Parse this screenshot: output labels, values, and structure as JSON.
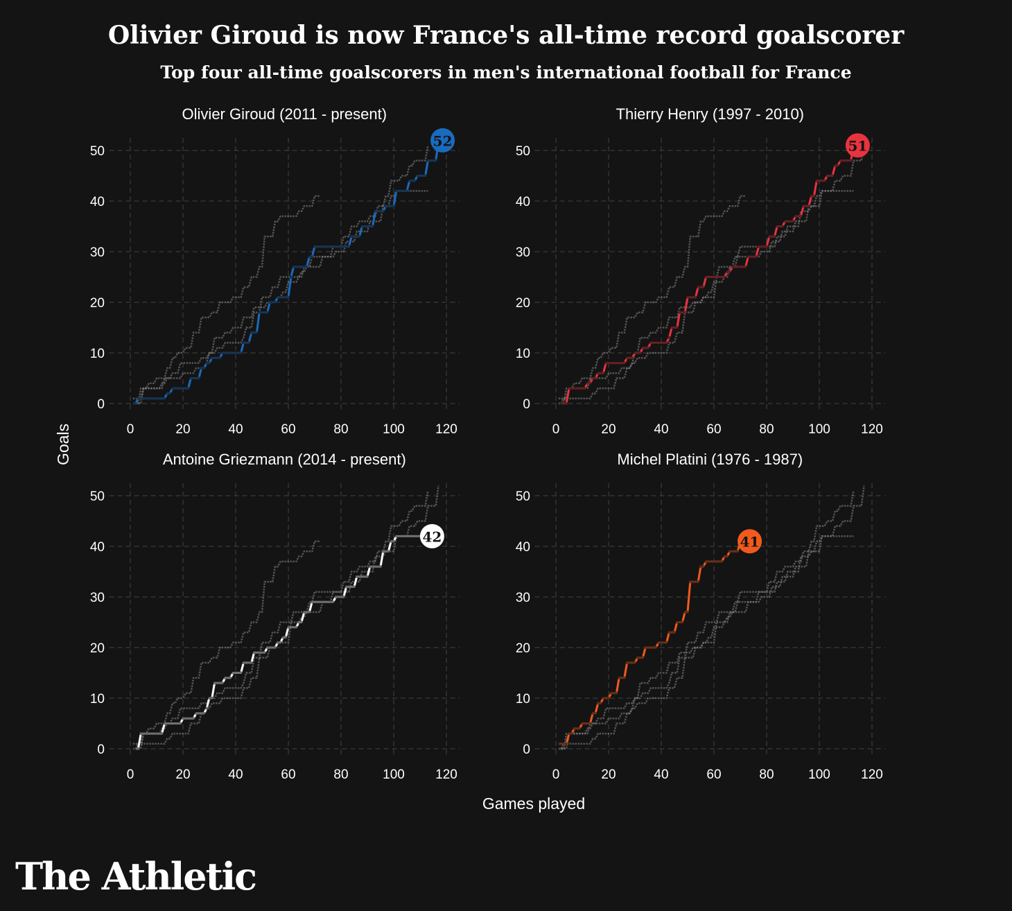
{
  "title": "Olivier Giroud is now France's all-time record goalscorer",
  "subtitle": "Top four all-time goalscorers in men's international football for France",
  "brand": "The Athletic",
  "chart_data": {
    "type": "line",
    "layout": "2x2 small multiples, each highlighting one player with the others in grey",
    "xlabel": "Games played",
    "ylabel": "Goals",
    "xlim": [
      0,
      120
    ],
    "ylim": [
      0,
      52
    ],
    "x_ticks": [
      0,
      20,
      40,
      60,
      80,
      100,
      120
    ],
    "y_ticks": [
      0,
      10,
      20,
      30,
      40,
      50
    ],
    "grid": true,
    "background_color": "#141414",
    "other_series_color": "#8a8a8a",
    "series": [
      {
        "name": "Olivier Giroud (2011 - present)",
        "color": "#1a6bbf",
        "final_goals": "52",
        "badge_text_color": "#141414",
        "cumulative_points": [
          [
            1,
            0
          ],
          [
            3,
            1
          ],
          [
            12,
            1
          ],
          [
            14,
            2
          ],
          [
            16,
            3
          ],
          [
            22,
            3
          ],
          [
            23,
            5
          ],
          [
            26,
            5
          ],
          [
            27,
            7
          ],
          [
            29,
            8
          ],
          [
            31,
            9
          ],
          [
            35,
            10
          ],
          [
            42,
            10
          ],
          [
            43,
            12
          ],
          [
            46,
            14
          ],
          [
            49,
            18
          ],
          [
            53,
            20
          ],
          [
            56,
            21
          ],
          [
            61,
            25
          ],
          [
            62,
            27
          ],
          [
            68,
            29
          ],
          [
            70,
            31
          ],
          [
            82,
            31
          ],
          [
            84,
            33
          ],
          [
            88,
            35
          ],
          [
            93,
            38
          ],
          [
            97,
            39
          ],
          [
            101,
            42
          ],
          [
            105,
            42
          ],
          [
            106,
            44
          ],
          [
            109,
            45
          ],
          [
            113,
            48
          ],
          [
            117,
            52
          ]
        ]
      },
      {
        "name": "Thierry Henry (1997 - 2010)",
        "color": "#e8343f",
        "final_goals": "51",
        "badge_text_color": "#141414",
        "cumulative_points": [
          [
            2,
            0
          ],
          [
            4,
            0
          ],
          [
            5,
            3
          ],
          [
            11,
            3
          ],
          [
            12,
            4
          ],
          [
            14,
            5
          ],
          [
            16,
            6
          ],
          [
            19,
            8
          ],
          [
            27,
            9
          ],
          [
            30,
            10
          ],
          [
            33,
            11
          ],
          [
            36,
            12
          ],
          [
            43,
            13
          ],
          [
            44,
            15
          ],
          [
            47,
            18
          ],
          [
            50,
            21
          ],
          [
            54,
            23
          ],
          [
            57,
            25
          ],
          [
            65,
            26
          ],
          [
            67,
            27
          ],
          [
            73,
            29
          ],
          [
            77,
            31
          ],
          [
            81,
            33
          ],
          [
            84,
            35
          ],
          [
            87,
            36
          ],
          [
            91,
            37
          ],
          [
            94,
            39
          ],
          [
            97,
            41
          ],
          [
            99,
            44
          ],
          [
            103,
            45
          ],
          [
            106,
            47
          ],
          [
            108,
            48
          ],
          [
            113,
            51
          ]
        ]
      },
      {
        "name": "Antoine Griezmann (2014 - present)",
        "color": "#ffffff",
        "final_goals": "42",
        "badge_text_color": "#141414",
        "cumulative_points": [
          [
            2,
            0
          ],
          [
            4,
            3
          ],
          [
            12,
            3
          ],
          [
            13,
            5
          ],
          [
            20,
            6
          ],
          [
            24,
            6
          ],
          [
            25,
            7
          ],
          [
            29,
            8
          ],
          [
            30,
            10
          ],
          [
            32,
            13
          ],
          [
            36,
            14
          ],
          [
            39,
            15
          ],
          [
            43,
            17
          ],
          [
            47,
            19
          ],
          [
            52,
            20
          ],
          [
            56,
            21
          ],
          [
            58,
            22
          ],
          [
            60,
            24
          ],
          [
            64,
            25
          ],
          [
            66,
            27
          ],
          [
            69,
            29
          ],
          [
            78,
            30
          ],
          [
            82,
            32
          ],
          [
            86,
            34
          ],
          [
            91,
            36
          ],
          [
            96,
            39
          ],
          [
            99,
            41
          ],
          [
            101,
            42
          ],
          [
            113,
            42
          ]
        ]
      },
      {
        "name": "Michel Platini (1976 - 1987)",
        "color": "#f25a1d",
        "final_goals": "41",
        "badge_text_color": "#141414",
        "cumulative_points": [
          [
            1,
            1
          ],
          [
            3,
            1
          ],
          [
            5,
            3
          ],
          [
            7,
            4
          ],
          [
            10,
            5
          ],
          [
            14,
            7
          ],
          [
            16,
            9
          ],
          [
            18,
            10
          ],
          [
            21,
            11
          ],
          [
            24,
            14
          ],
          [
            27,
            17
          ],
          [
            31,
            18
          ],
          [
            34,
            20
          ],
          [
            39,
            21
          ],
          [
            43,
            23
          ],
          [
            46,
            25
          ],
          [
            49,
            27
          ],
          [
            51,
            33
          ],
          [
            55,
            36
          ],
          [
            57,
            37
          ],
          [
            64,
            38
          ],
          [
            66,
            39
          ],
          [
            70,
            41
          ],
          [
            72,
            41
          ]
        ]
      }
    ]
  }
}
